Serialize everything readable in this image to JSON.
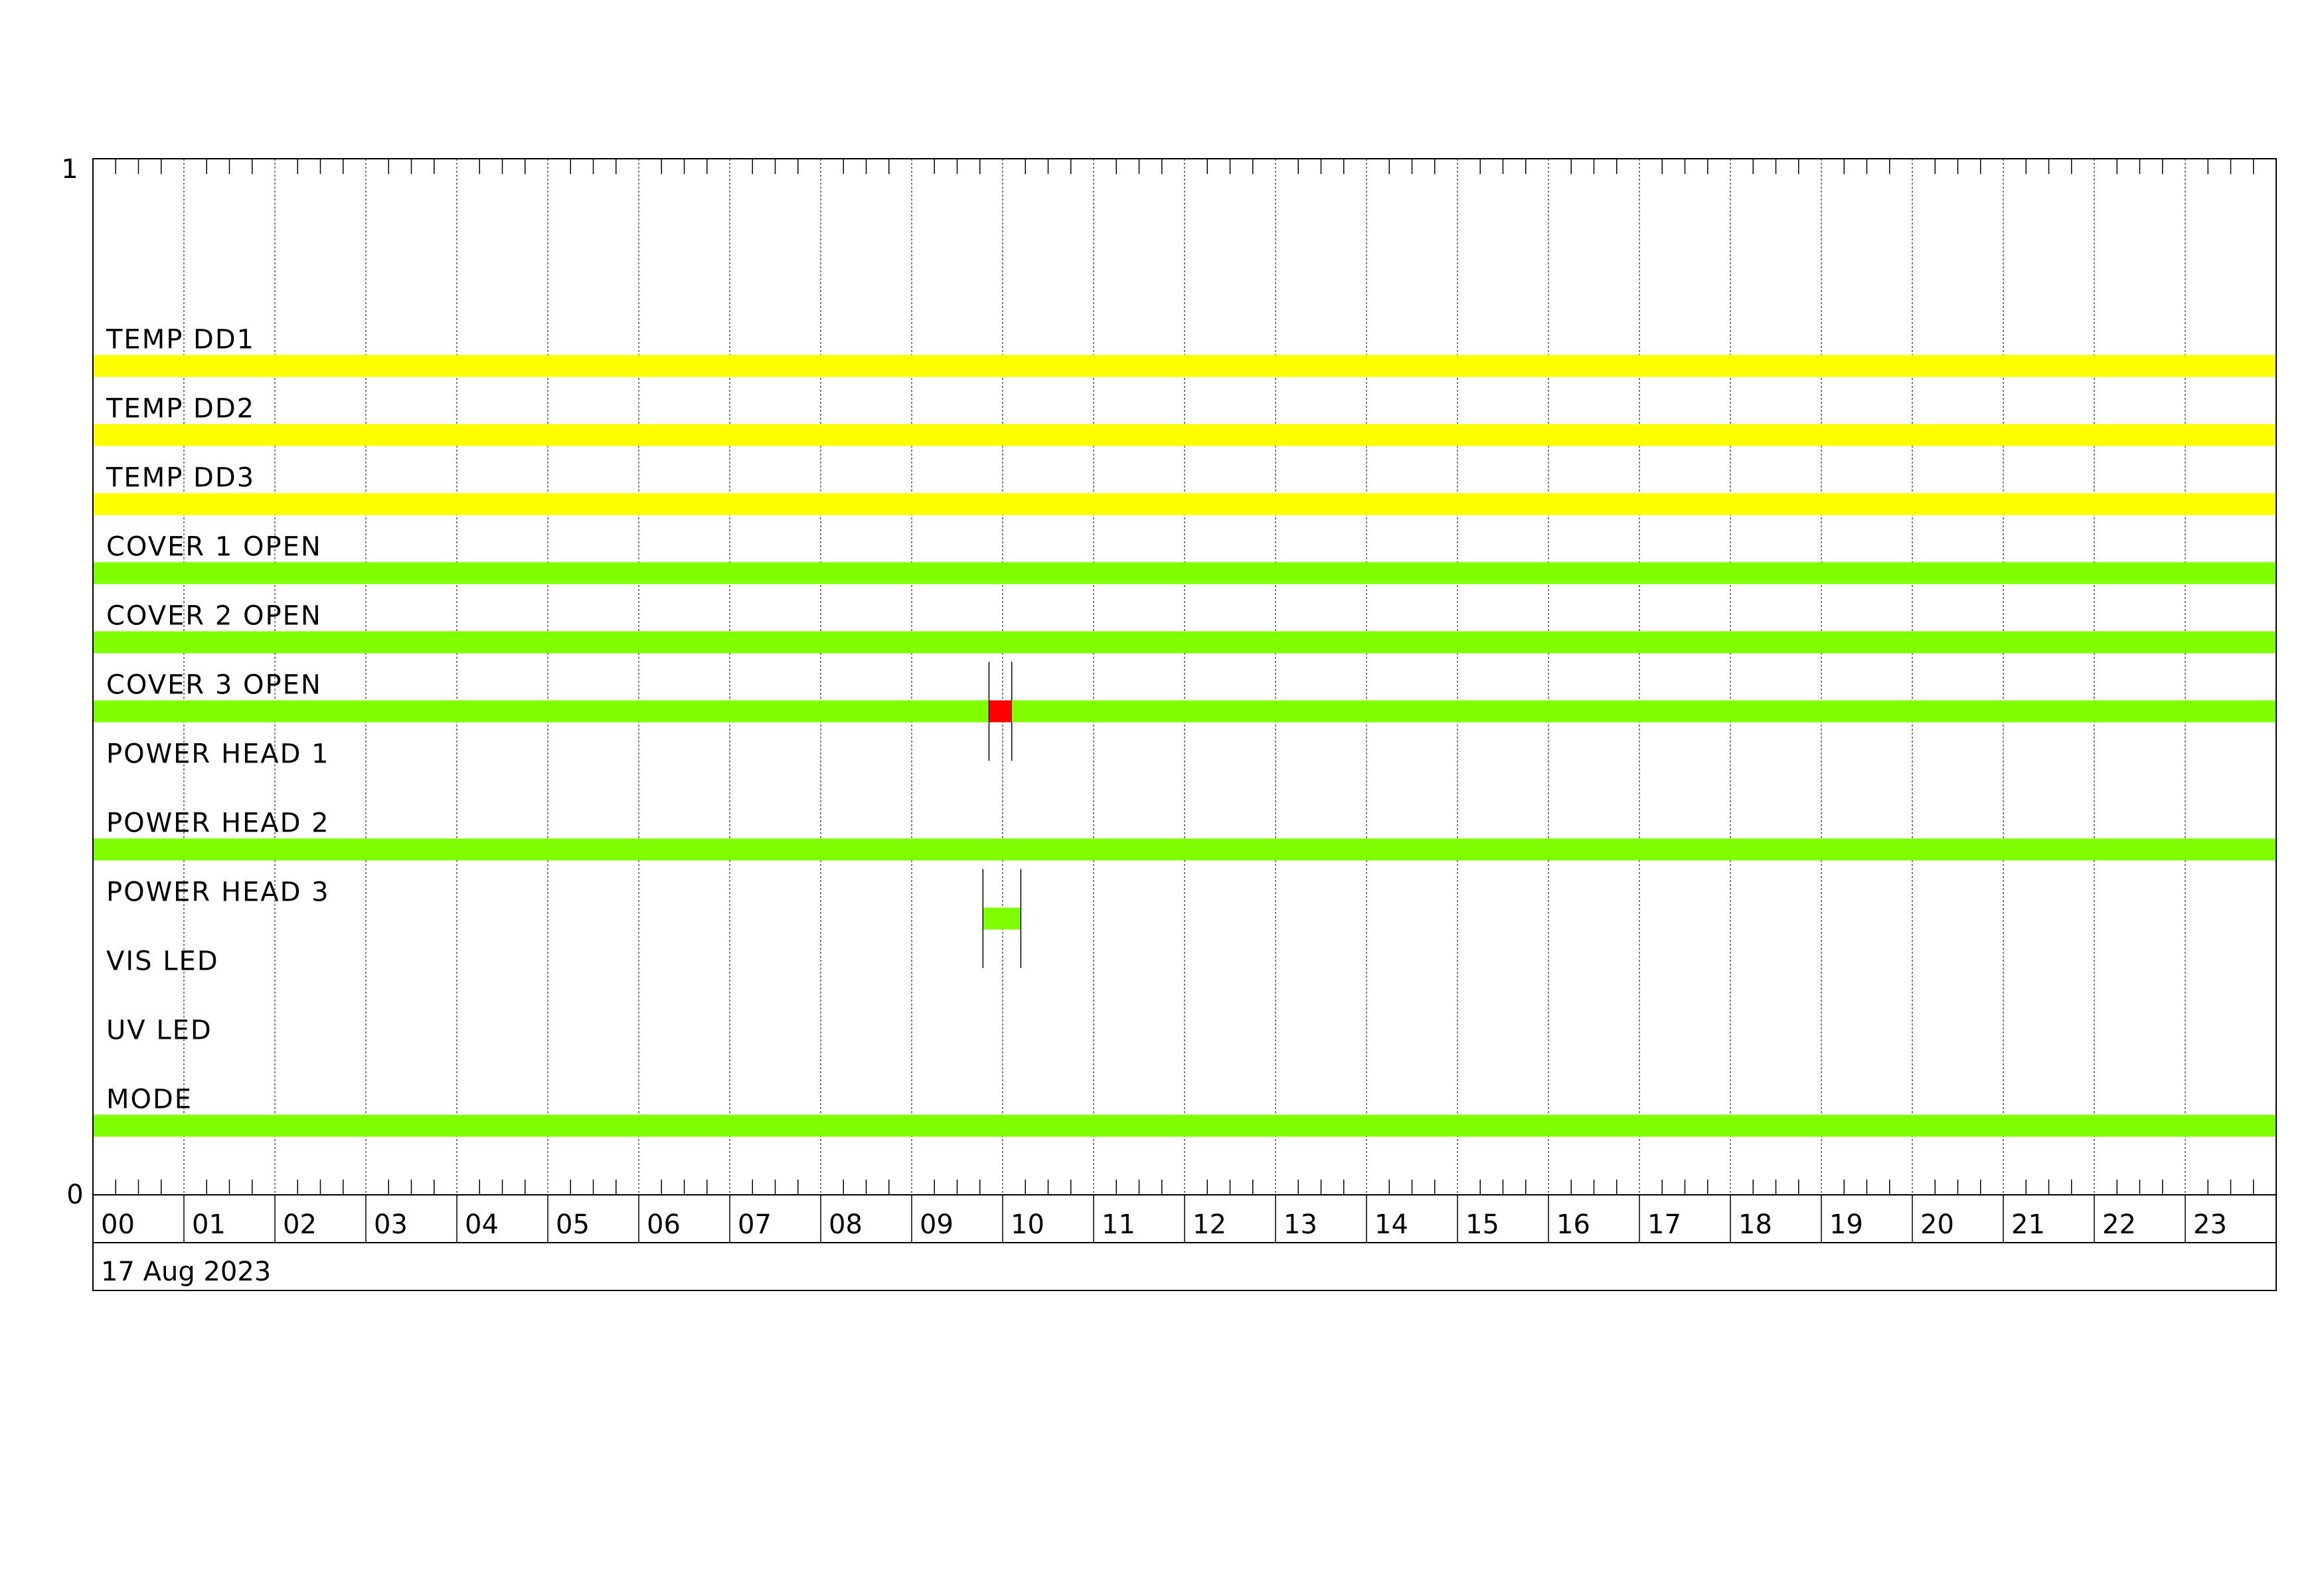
{
  "chart_data": {
    "type": "timeline",
    "title": "",
    "date_label": "17 Aug 2023",
    "y_ticks": [
      "1",
      "0"
    ],
    "ylim": [
      0,
      1
    ],
    "x_unit": "hour",
    "xlim": [
      "00:00",
      "24:00"
    ],
    "x_ticks": [
      "00",
      "01",
      "02",
      "03",
      "04",
      "05",
      "06",
      "07",
      "08",
      "09",
      "10",
      "11",
      "12",
      "13",
      "14",
      "15",
      "16",
      "17",
      "18",
      "19",
      "20",
      "21",
      "22",
      "23"
    ],
    "minor_ticks_per_hour": 4,
    "grid": true,
    "colors": {
      "yellow": "#ffff00",
      "green": "#7fff00",
      "red": "#ff0000"
    },
    "rows": [
      {
        "label": "TEMP DD1",
        "segments": [
          {
            "start": "00:00",
            "end": "24:00",
            "color": "#ffff00"
          }
        ]
      },
      {
        "label": "TEMP DD2",
        "segments": [
          {
            "start": "00:00",
            "end": "24:00",
            "color": "#ffff00"
          }
        ]
      },
      {
        "label": "TEMP DD3",
        "segments": [
          {
            "start": "00:00",
            "end": "24:00",
            "color": "#ffff00"
          }
        ]
      },
      {
        "label": "COVER 1 OPEN",
        "segments": [
          {
            "start": "00:00",
            "end": "24:00",
            "color": "#7fff00"
          }
        ]
      },
      {
        "label": "COVER 2 OPEN",
        "segments": [
          {
            "start": "00:00",
            "end": "24:00",
            "color": "#7fff00"
          }
        ]
      },
      {
        "label": "COVER 3 OPEN",
        "segments": [
          {
            "start": "00:00",
            "end": "09:51",
            "color": "#7fff00"
          },
          {
            "start": "09:51",
            "end": "10:06",
            "color": "#ff0000",
            "markers": true
          },
          {
            "start": "10:06",
            "end": "24:00",
            "color": "#7fff00"
          }
        ]
      },
      {
        "label": "POWER HEAD 1",
        "segments": []
      },
      {
        "label": "POWER HEAD 2",
        "segments": [
          {
            "start": "00:00",
            "end": "24:00",
            "color": "#7fff00"
          }
        ]
      },
      {
        "label": "POWER HEAD 3",
        "segments": [
          {
            "start": "09:47",
            "end": "10:12",
            "color": "#7fff00",
            "markers": true
          }
        ]
      },
      {
        "label": "VIS LED",
        "segments": []
      },
      {
        "label": "UV LED",
        "segments": []
      },
      {
        "label": "MODE",
        "segments": [
          {
            "start": "00:00",
            "end": "24:00",
            "color": "#7fff00"
          }
        ]
      }
    ]
  }
}
